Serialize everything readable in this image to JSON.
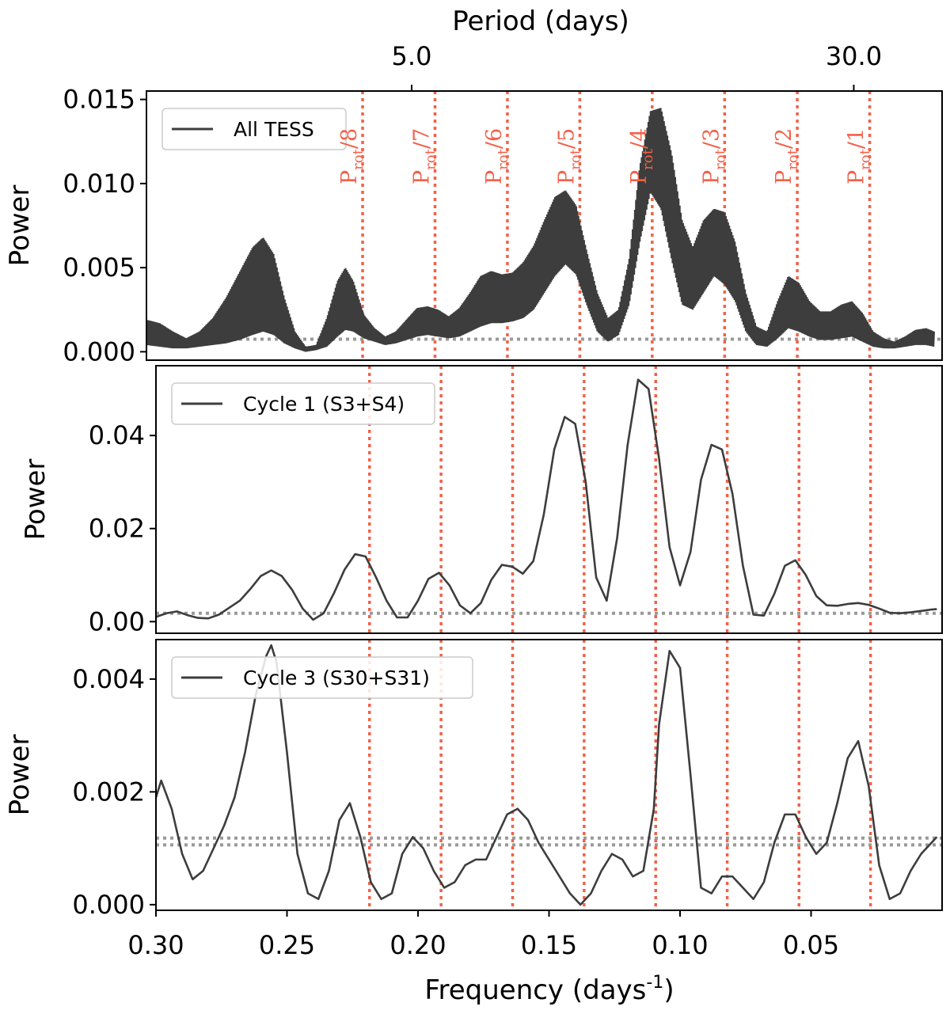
{
  "chart_data": [
    {
      "type": "line",
      "panel": "top",
      "ylabel": "Power",
      "ylim": [
        -0.0005,
        0.0155
      ],
      "yticks": [
        0.0,
        0.005,
        0.01,
        0.015
      ],
      "ytick_labels": [
        "0.000",
        "0.005",
        "0.010",
        "0.015"
      ],
      "legend": "All TESS",
      "threshold": [
        0.00075
      ],
      "oscillating": true,
      "envelope_x": [
        0.3,
        0.295,
        0.29,
        0.285,
        0.28,
        0.275,
        0.27,
        0.265,
        0.26,
        0.256,
        0.252,
        0.248,
        0.244,
        0.24,
        0.236,
        0.232,
        0.228,
        0.225,
        0.222,
        0.218,
        0.214,
        0.21,
        0.206,
        0.202,
        0.198,
        0.194,
        0.19,
        0.186,
        0.182,
        0.178,
        0.174,
        0.17,
        0.166,
        0.162,
        0.158,
        0.154,
        0.15,
        0.146,
        0.142,
        0.138,
        0.134,
        0.13,
        0.126,
        0.122,
        0.118,
        0.114,
        0.11,
        0.106,
        0.102,
        0.098,
        0.094,
        0.09,
        0.086,
        0.082,
        0.078,
        0.074,
        0.07,
        0.066,
        0.062,
        0.058,
        0.054,
        0.05,
        0.046,
        0.042,
        0.038,
        0.034,
        0.03,
        0.026,
        0.022,
        0.018,
        0.014,
        0.01,
        0.006,
        0.003
      ],
      "envelope_upper": [
        0.0019,
        0.0017,
        0.0012,
        0.0008,
        0.0012,
        0.002,
        0.0032,
        0.0047,
        0.0062,
        0.0068,
        0.0058,
        0.0032,
        0.0012,
        0.0003,
        0.0004,
        0.002,
        0.0042,
        0.005,
        0.0042,
        0.0022,
        0.0014,
        0.0009,
        0.0012,
        0.0019,
        0.0026,
        0.0027,
        0.0025,
        0.0021,
        0.0026,
        0.0035,
        0.0045,
        0.0048,
        0.0046,
        0.0047,
        0.0053,
        0.0063,
        0.0078,
        0.0092,
        0.0096,
        0.0087,
        0.006,
        0.0035,
        0.002,
        0.0025,
        0.0055,
        0.011,
        0.0143,
        0.0145,
        0.0118,
        0.0078,
        0.0062,
        0.0078,
        0.0085,
        0.0083,
        0.0065,
        0.0035,
        0.0015,
        0.0012,
        0.003,
        0.0045,
        0.0041,
        0.003,
        0.0024,
        0.0024,
        0.0028,
        0.003,
        0.0023,
        0.0012,
        0.0008,
        0.0006,
        0.0009,
        0.0013,
        0.0014,
        0.0012
      ],
      "envelope_lower": [
        0.0004,
        0.0003,
        0.0002,
        0.0002,
        0.0003,
        0.0004,
        0.0005,
        0.0007,
        0.001,
        0.0012,
        0.001,
        0.0005,
        0.0002,
        0.0,
        0.0001,
        0.0003,
        0.0009,
        0.0013,
        0.0012,
        0.0008,
        0.0006,
        0.0004,
        0.0005,
        0.0007,
        0.0009,
        0.001,
        0.0009,
        0.0008,
        0.0009,
        0.0012,
        0.0015,
        0.0017,
        0.0017,
        0.0018,
        0.002,
        0.0025,
        0.0035,
        0.0045,
        0.0052,
        0.0046,
        0.0028,
        0.0012,
        0.0006,
        0.001,
        0.0028,
        0.0065,
        0.0095,
        0.0085,
        0.0055,
        0.0028,
        0.0025,
        0.0035,
        0.0045,
        0.004,
        0.003,
        0.0012,
        0.0004,
        0.0003,
        0.0008,
        0.0014,
        0.0012,
        0.0009,
        0.0007,
        0.0007,
        0.0008,
        0.0009,
        0.0006,
        0.0003,
        0.0002,
        0.0002,
        0.0003,
        0.0004,
        0.0004,
        0.0003
      ]
    },
    {
      "type": "line",
      "panel": "middle",
      "ylabel": "Power",
      "ylim": [
        -0.0025,
        0.055
      ],
      "yticks": [
        0.0,
        0.02,
        0.04
      ],
      "ytick_labels": [
        "0.00",
        "0.02",
        "0.04"
      ],
      "legend": "Cycle 1 (S3+S4)",
      "threshold": [
        0.0018
      ],
      "x": [
        0.3,
        0.296,
        0.292,
        0.288,
        0.284,
        0.28,
        0.276,
        0.272,
        0.268,
        0.264,
        0.26,
        0.256,
        0.252,
        0.248,
        0.244,
        0.24,
        0.236,
        0.232,
        0.228,
        0.224,
        0.22,
        0.216,
        0.212,
        0.208,
        0.204,
        0.2,
        0.196,
        0.192,
        0.188,
        0.184,
        0.18,
        0.176,
        0.172,
        0.168,
        0.164,
        0.16,
        0.156,
        0.152,
        0.148,
        0.144,
        0.14,
        0.136,
        0.132,
        0.128,
        0.124,
        0.12,
        0.116,
        0.112,
        0.108,
        0.104,
        0.1,
        0.096,
        0.092,
        0.088,
        0.084,
        0.08,
        0.076,
        0.072,
        0.068,
        0.064,
        0.06,
        0.056,
        0.052,
        0.048,
        0.044,
        0.04,
        0.036,
        0.032,
        0.028,
        0.024,
        0.02,
        0.016,
        0.012,
        0.008,
        0.004,
        0.002
      ],
      "y": [
        0.001,
        0.0018,
        0.0022,
        0.0014,
        0.0008,
        0.0007,
        0.0015,
        0.003,
        0.0045,
        0.007,
        0.0098,
        0.011,
        0.0098,
        0.0068,
        0.0028,
        0.0004,
        0.0018,
        0.0062,
        0.0112,
        0.0145,
        0.014,
        0.0095,
        0.0045,
        0.0009,
        0.0009,
        0.0045,
        0.0092,
        0.0105,
        0.0078,
        0.0035,
        0.0018,
        0.004,
        0.009,
        0.0122,
        0.0118,
        0.0103,
        0.013,
        0.023,
        0.037,
        0.044,
        0.0425,
        0.03,
        0.0095,
        0.0045,
        0.018,
        0.038,
        0.052,
        0.05,
        0.035,
        0.016,
        0.0078,
        0.015,
        0.0305,
        0.038,
        0.037,
        0.0275,
        0.012,
        0.0015,
        0.0013,
        0.006,
        0.012,
        0.0132,
        0.01,
        0.0055,
        0.0035,
        0.0034,
        0.0038,
        0.004,
        0.0036,
        0.0028,
        0.0019,
        0.0018,
        0.002,
        0.0023,
        0.0026,
        0.0027
      ]
    },
    {
      "type": "line",
      "panel": "bottom",
      "ylabel": "Power",
      "ylim": [
        -0.0001,
        0.0047
      ],
      "yticks": [
        0.0,
        0.002,
        0.004
      ],
      "ytick_labels": [
        "0.000",
        "0.002",
        "0.004"
      ],
      "legend": "Cycle 3 (S30+S31)",
      "threshold": [
        0.00118,
        0.00106
      ],
      "x": [
        0.3,
        0.298,
        0.294,
        0.29,
        0.286,
        0.282,
        0.278,
        0.274,
        0.27,
        0.266,
        0.262,
        0.258,
        0.256,
        0.254,
        0.25,
        0.246,
        0.242,
        0.238,
        0.234,
        0.23,
        0.226,
        0.222,
        0.218,
        0.214,
        0.21,
        0.206,
        0.202,
        0.198,
        0.194,
        0.19,
        0.186,
        0.182,
        0.178,
        0.174,
        0.17,
        0.166,
        0.162,
        0.158,
        0.154,
        0.15,
        0.146,
        0.142,
        0.138,
        0.134,
        0.13,
        0.126,
        0.122,
        0.118,
        0.114,
        0.11,
        0.108,
        0.104,
        0.1,
        0.096,
        0.092,
        0.088,
        0.084,
        0.08,
        0.076,
        0.072,
        0.068,
        0.064,
        0.06,
        0.056,
        0.052,
        0.048,
        0.044,
        0.04,
        0.036,
        0.032,
        0.028,
        0.024,
        0.02,
        0.016,
        0.012,
        0.008,
        0.004,
        0.002
      ],
      "y": [
        0.0019,
        0.0022,
        0.0017,
        0.0009,
        0.00045,
        0.0006,
        0.001,
        0.0014,
        0.0019,
        0.0027,
        0.0037,
        0.0044,
        0.0046,
        0.0043,
        0.0027,
        0.0009,
        0.0002,
        0.0001,
        0.0006,
        0.0015,
        0.0018,
        0.0012,
        0.0004,
        0.0001,
        0.0002,
        0.0009,
        0.0012,
        0.001,
        0.0006,
        0.0003,
        0.0004,
        0.0007,
        0.0008,
        0.0008,
        0.0012,
        0.0016,
        0.0017,
        0.0015,
        0.0011,
        0.0008,
        0.0005,
        0.0002,
        0.0,
        0.0002,
        0.0006,
        0.0009,
        0.0008,
        0.0005,
        0.0006,
        0.0017,
        0.0032,
        0.0045,
        0.0042,
        0.0023,
        0.0003,
        0.0002,
        0.0005,
        0.0005,
        0.0003,
        0.0001,
        0.0004,
        0.0011,
        0.0016,
        0.0016,
        0.0012,
        0.0009,
        0.0011,
        0.0018,
        0.0026,
        0.0029,
        0.0021,
        0.0007,
        0.0001,
        0.0002,
        0.0006,
        0.0009,
        0.0011,
        0.0012
      ]
    }
  ],
  "axes": {
    "xlim": [
      0.3,
      0.0
    ],
    "xticks": [
      0.3,
      0.25,
      0.2,
      0.15,
      0.1,
      0.05
    ],
    "xtick_labels": [
      "0.30",
      "0.25",
      "0.20",
      "0.15",
      "0.10",
      "0.05"
    ],
    "xlabel": "Frequency (days",
    "xlabel_sup": "-1",
    "xlabel_end": ")",
    "top_xlabel": "Period (days)",
    "top_xticks": [
      {
        "label": "5.0",
        "freq": 0.2
      },
      {
        "label": "30.0",
        "freq": 0.0333
      }
    ]
  },
  "vlines": [
    {
      "freq": 0.2185,
      "main": "P",
      "sub": "rot",
      "suffix": "/8"
    },
    {
      "freq": 0.1912,
      "main": "P",
      "sub": "rot",
      "suffix": "/7"
    },
    {
      "freq": 0.1639,
      "main": "P",
      "sub": "rot",
      "suffix": "/6"
    },
    {
      "freq": 0.1366,
      "main": "P",
      "sub": "rot",
      "suffix": "/5"
    },
    {
      "freq": 0.1093,
      "main": "P",
      "sub": "rot",
      "suffix": "/4"
    },
    {
      "freq": 0.082,
      "main": "P",
      "sub": "rot",
      "suffix": "/3"
    },
    {
      "freq": 0.0546,
      "main": "P",
      "sub": "rot",
      "suffix": "/2"
    },
    {
      "freq": 0.0273,
      "main": "P",
      "sub": "rot",
      "suffix": "/1"
    }
  ],
  "colors": {
    "line": "#3d3d3d",
    "threshold": "#999999",
    "vline": "#f46048"
  }
}
